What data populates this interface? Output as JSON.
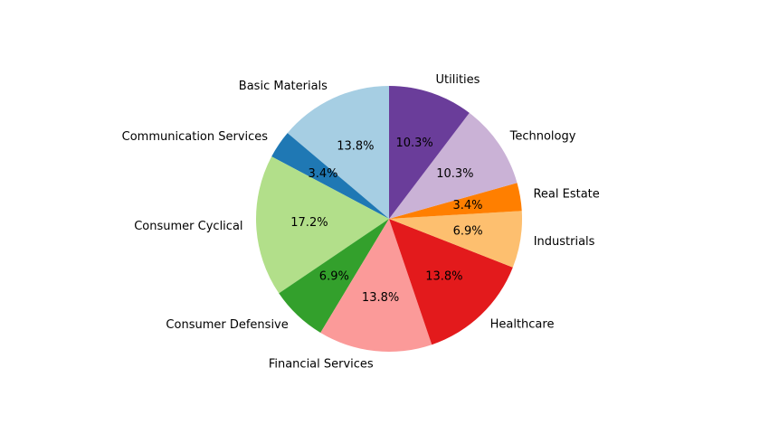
{
  "chart_data": {
    "type": "pie",
    "categories": [
      "Basic Materials",
      "Communication Services",
      "Consumer Cyclical",
      "Consumer Defensive",
      "Financial Services",
      "Healthcare",
      "Industrials",
      "Real Estate",
      "Technology",
      "Utilities"
    ],
    "values": [
      13.8,
      3.4,
      17.2,
      6.9,
      13.8,
      13.8,
      6.9,
      3.4,
      10.3,
      10.3
    ],
    "value_labels": [
      "13.8%",
      "3.4%",
      "17.2%",
      "6.9%",
      "13.8%",
      "13.8%",
      "6.9%",
      "3.4%",
      "10.3%",
      "10.3%"
    ],
    "colors": [
      "#a6cee3",
      "#1f78b4",
      "#b2df8a",
      "#33a02c",
      "#fb9a99",
      "#e31a1c",
      "#fdbf6f",
      "#ff7f00",
      "#cab2d6",
      "#6a3d9a"
    ],
    "start_angle_deg": 90,
    "direction": "counterclockwise",
    "title": "",
    "legend": false
  }
}
